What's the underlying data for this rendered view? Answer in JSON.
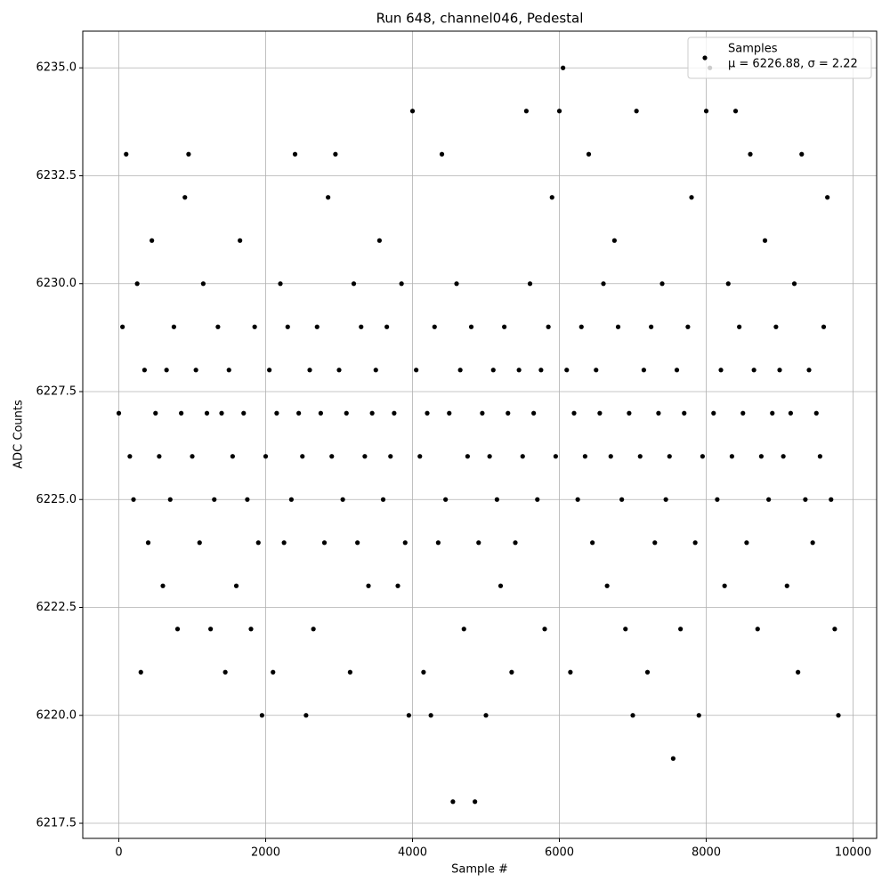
{
  "chart_data": {
    "type": "scatter",
    "title": "Run 648, channel046, Pedestal",
    "x_label": "Sample #",
    "y_label": "ADC Counts",
    "x": [
      0,
      50,
      100,
      150,
      200,
      250,
      300,
      350,
      400,
      450,
      500,
      550,
      600,
      650,
      700,
      750,
      800,
      850,
      900,
      950,
      1000,
      1050,
      1100,
      1150,
      1200,
      1250,
      1300,
      1350,
      1400,
      1450,
      1500,
      1550,
      1600,
      1650,
      1700,
      1750,
      1800,
      1850,
      1900,
      1950,
      2000,
      2050,
      2100,
      2150,
      2200,
      2250,
      2300,
      2350,
      2400,
      2450,
      2500,
      2550,
      2600,
      2650,
      2700,
      2750,
      2800,
      2850,
      2900,
      2950,
      3000,
      3050,
      3100,
      3150,
      3200,
      3250,
      3300,
      3350,
      3400,
      3450,
      3500,
      3550,
      3600,
      3650,
      3700,
      3750,
      3800,
      3850,
      3900,
      3950,
      4000,
      4050,
      4100,
      4150,
      4200,
      4250,
      4300,
      4350,
      4400,
      4450,
      4500,
      4550,
      4600,
      4650,
      4700,
      4750,
      4800,
      4850,
      4900,
      4950,
      5000,
      5050,
      5100,
      5150,
      5200,
      5250,
      5300,
      5350,
      5400,
      5450,
      5500,
      5550,
      5600,
      5650,
      5700,
      5750,
      5800,
      5850,
      5900,
      5950,
      6000,
      6050,
      6100,
      6150,
      6200,
      6250,
      6300,
      6350,
      6400,
      6450,
      6500,
      6550,
      6600,
      6650,
      6700,
      6750,
      6800,
      6850,
      6900,
      6950,
      7000,
      7050,
      7100,
      7150,
      7200,
      7250,
      7300,
      7350,
      7400,
      7450,
      7500,
      7550,
      7600,
      7650,
      7700,
      7750,
      7800,
      7850,
      7900,
      7950,
      8000,
      8050,
      8100,
      8150,
      8200,
      8250,
      8300,
      8350,
      8400,
      8450,
      8500,
      8550,
      8600,
      8650,
      8700,
      8750,
      8800,
      8850,
      8900,
      8950,
      9000,
      9050,
      9100,
      9150,
      9200,
      9250,
      9300,
      9350,
      9400,
      9450,
      9500,
      9550,
      9600,
      9650,
      9700,
      9750,
      9800
    ],
    "series": [
      {
        "name": "Samples",
        "color": "#000000",
        "values": [
          6227,
          6229,
          6233,
          6226,
          6225,
          6230,
          6221,
          6228,
          6224,
          6231,
          6227,
          6226,
          6223,
          6228,
          6225,
          6229,
          6222,
          6227,
          6232,
          6233,
          6226,
          6228,
          6224,
          6230,
          6227,
          6222,
          6225,
          6229,
          6227,
          6221,
          6228,
          6226,
          6223,
          6231,
          6227,
          6225,
          6222,
          6229,
          6224,
          6220,
          6226,
          6228,
          6221,
          6227,
          6230,
          6224,
          6229,
          6225,
          6233,
          6227,
          6226,
          6220,
          6228,
          6222,
          6229,
          6227,
          6224,
          6232,
          6226,
          6233,
          6228,
          6225,
          6227,
          6221,
          6230,
          6224,
          6229,
          6226,
          6223,
          6227,
          6228,
          6231,
          6225,
          6229,
          6226,
          6227,
          6223,
          6230,
          6224,
          6220,
          6234,
          6228,
          6226,
          6221,
          6227,
          6220,
          6229,
          6224,
          6233,
          6225,
          6227,
          6218,
          6230,
          6228,
          6222,
          6226,
          6229,
          6218,
          6224,
          6227,
          6220,
          6226,
          6228,
          6225,
          6223,
          6229,
          6227,
          6221,
          6224,
          6228,
          6226,
          6234,
          6230,
          6227,
          6225,
          6228,
          6222,
          6229,
          6232,
          6226,
          6234,
          6235,
          6228,
          6221,
          6227,
          6225,
          6229,
          6226,
          6233,
          6224,
          6228,
          6227,
          6230,
          6223,
          6226,
          6231,
          6229,
          6225,
          6222,
          6227,
          6220,
          6234,
          6226,
          6228,
          6221,
          6229,
          6224,
          6227,
          6230,
          6225,
          6226,
          6219,
          6228,
          6222,
          6227,
          6229,
          6232,
          6224,
          6220,
          6226,
          6234,
          6235,
          6227,
          6225,
          6228,
          6223,
          6230,
          6226,
          6234,
          6229,
          6227,
          6224,
          6233,
          6228,
          6222,
          6226,
          6231,
          6225,
          6227,
          6229,
          6228,
          6226,
          6223,
          6227,
          6230,
          6221,
          6233,
          6225,
          6228,
          6224,
          6227,
          6226,
          6229,
          6232,
          6225,
          6222,
          6220
        ]
      }
    ],
    "legend_label": "μ = 6226.88, σ = 2.22",
    "xlim": [
      -491,
      10321
    ],
    "ylim": [
      6217.15,
      6235.85
    ],
    "xticks": [
      0,
      2000,
      4000,
      6000,
      8000,
      10000
    ],
    "yticks": [
      6217.5,
      {
        "value": 6220,
        "label": "6220.0"
      },
      6222.5,
      {
        "value": 6225,
        "label": "6225.0"
      },
      6227.5,
      {
        "value": 6230,
        "label": "6230.0"
      },
      6232.5,
      {
        "value": 6235,
        "label": "6235.0"
      }
    ],
    "grid": true,
    "legend_position": "upper-right"
  }
}
